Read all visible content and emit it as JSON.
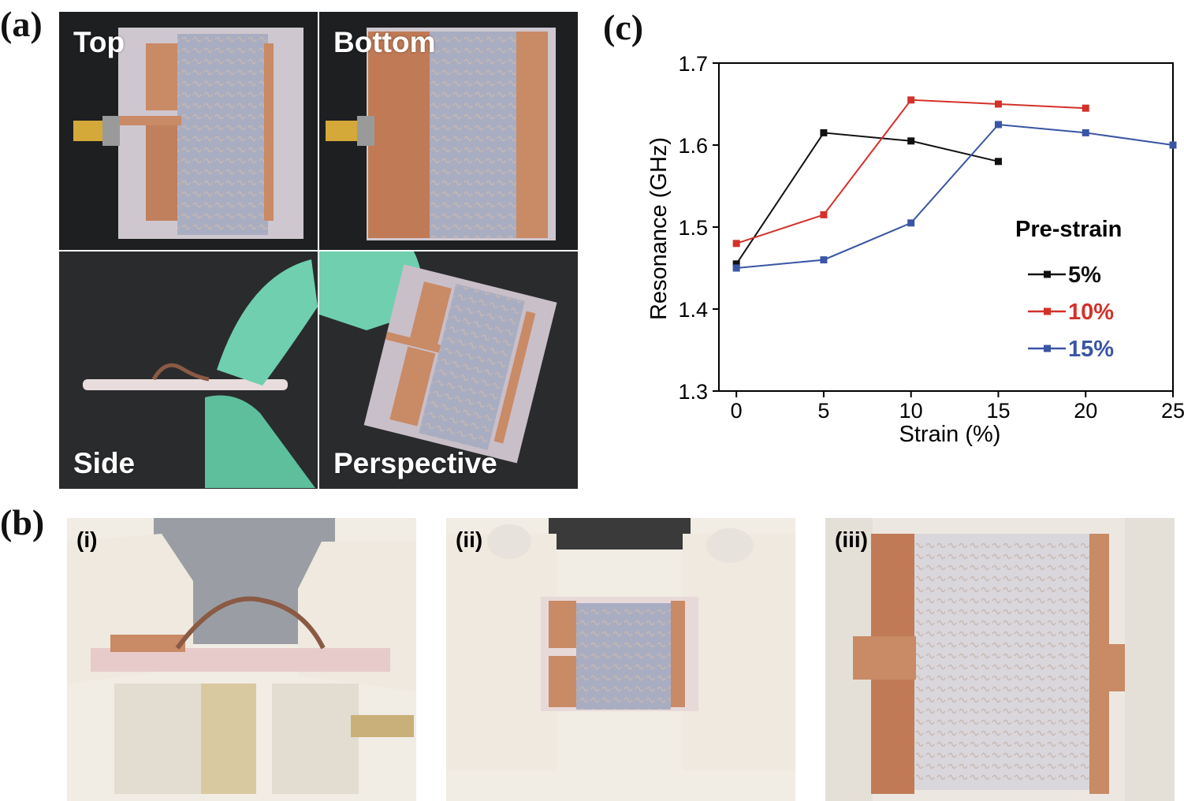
{
  "panel_labels": {
    "a": "(a)",
    "b": "(b)",
    "c": "(c)"
  },
  "panel_a": {
    "photo_labels": {
      "top": "Top",
      "bottom": "Bottom",
      "side": "Side",
      "perspective": "Perspective"
    }
  },
  "panel_b": {
    "photo_labels": {
      "i": "(i)",
      "ii": "(ii)",
      "iii": "(iii)"
    }
  },
  "colors": {
    "series_5": "#111111",
    "series_10": "#d4312a",
    "series_15": "#3a55a4",
    "copper": "#c98a66",
    "glove": "#6fcfae"
  },
  "chart_data": {
    "type": "line",
    "xlabel": "Strain (%)",
    "ylabel": "Resonance (GHz)",
    "xlim": [
      -1,
      25
    ],
    "ylim": [
      1.3,
      1.7
    ],
    "xticks": [
      0,
      5,
      10,
      15,
      20,
      25
    ],
    "yticks": [
      1.3,
      1.4,
      1.5,
      1.6,
      1.7
    ],
    "xtick_labels": [
      "0",
      "5",
      "10",
      "15",
      "20",
      "25"
    ],
    "ytick_labels": [
      "1.3",
      "1.4",
      "1.5",
      "1.6",
      "1.7"
    ],
    "legend_title": "Pre-strain",
    "legend_placement": "right",
    "grid": false,
    "series": [
      {
        "name": "5%",
        "color": "#111111",
        "x": [
          0,
          5,
          10,
          15
        ],
        "y": [
          1.455,
          1.615,
          1.605,
          1.58
        ]
      },
      {
        "name": "10%",
        "color": "#d4312a",
        "x": [
          0,
          5,
          10,
          15,
          20
        ],
        "y": [
          1.48,
          1.515,
          1.655,
          1.65,
          1.645
        ]
      },
      {
        "name": "15%",
        "color": "#3a55a4",
        "x": [
          0,
          5,
          10,
          15,
          20,
          25
        ],
        "y": [
          1.45,
          1.46,
          1.505,
          1.625,
          1.615,
          1.6
        ]
      }
    ]
  }
}
